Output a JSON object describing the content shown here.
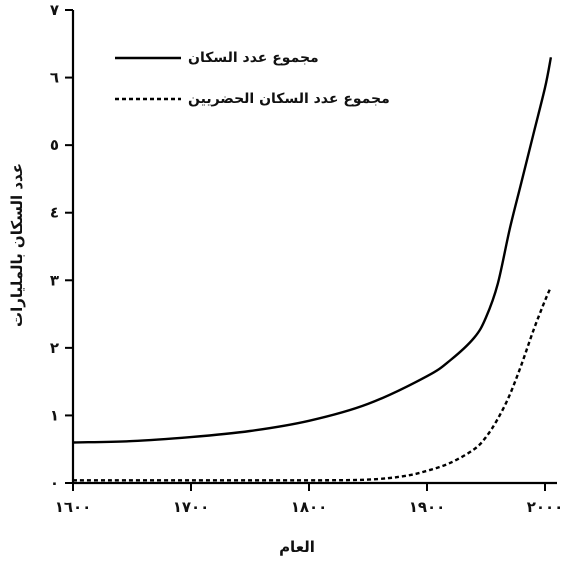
{
  "chart_data": {
    "type": "line",
    "xlabel": "العام",
    "ylabel": "عدد السكان بالمليارات",
    "xlim": [
      1600,
      2000
    ],
    "ylim": [
      0,
      7
    ],
    "x_ticks": [
      1600,
      1700,
      1800,
      1900,
      2000
    ],
    "x_tick_labels": [
      "١٦٠٠",
      "١٧٠٠",
      "١٨٠٠",
      "١٩٠٠",
      "٢٠٠٠"
    ],
    "y_ticks": [
      0,
      1,
      2,
      3,
      4,
      5,
      6,
      7
    ],
    "y_tick_labels": [
      "٠",
      "١",
      "٢",
      "٣",
      "٤",
      "٥",
      "٦",
      "٧"
    ],
    "grid": false,
    "legend_position": "top-right",
    "series": [
      {
        "name": "مجموع عدد السكان",
        "style": "solid",
        "color": "#000000",
        "x": [
          1600,
          1650,
          1700,
          1750,
          1800,
          1850,
          1900,
          1920,
          1940,
          1950,
          1960,
          1970,
          1980,
          1990,
          2000,
          2005
        ],
        "y": [
          0.6,
          0.62,
          0.68,
          0.77,
          0.92,
          1.17,
          1.58,
          1.82,
          2.15,
          2.45,
          2.95,
          3.75,
          4.45,
          5.15,
          5.85,
          6.3
        ]
      },
      {
        "name": "مجموع عدد السكان الحضريين",
        "style": "dashed",
        "color": "#000000",
        "x": [
          1600,
          1700,
          1800,
          1850,
          1880,
          1900,
          1920,
          1940,
          1950,
          1960,
          1970,
          1980,
          1990,
          2000,
          2005
        ],
        "y": [
          0.04,
          0.04,
          0.04,
          0.05,
          0.1,
          0.18,
          0.3,
          0.5,
          0.68,
          0.95,
          1.3,
          1.75,
          2.25,
          2.7,
          2.9
        ]
      }
    ]
  }
}
